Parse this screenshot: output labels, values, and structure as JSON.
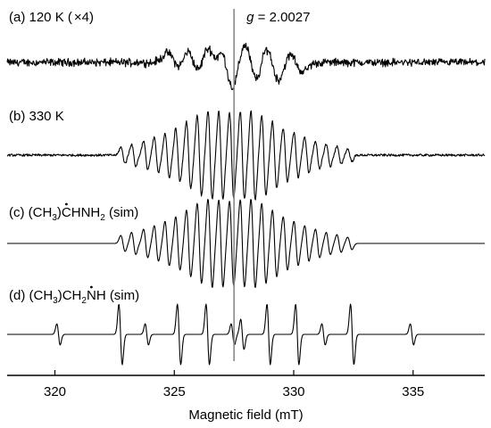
{
  "chart_data": {
    "type": "line",
    "xlabel": "Magnetic field (mT)",
    "xlim": [
      318.0,
      338.0
    ],
    "xticks": [
      320,
      325,
      330,
      335
    ],
    "grid": false,
    "reference_line": {
      "x": 327.5,
      "label_prefix": "g",
      "label_suffix": " = 2.0027"
    },
    "spectra": [
      {
        "id": "a",
        "label_parts": [
          "(a) 120 K (",
          "×",
          "4)"
        ],
        "kind": "broad-noisy",
        "range": [
          318.0,
          338.0
        ],
        "center": 327.5,
        "peaks": [
          {
            "x": 325.0,
            "amp": 0.35
          },
          {
            "x": 325.8,
            "amp": 0.55
          },
          {
            "x": 326.6,
            "amp": 0.7
          },
          {
            "x": 327.2,
            "amp": 1.0
          },
          {
            "x": 328.2,
            "amp": 0.8
          },
          {
            "x": 329.1,
            "amp": 0.7
          },
          {
            "x": 330.1,
            "amp": 0.35
          }
        ]
      },
      {
        "id": "b",
        "label_parts": [
          "(b) 330 K"
        ],
        "kind": "multiplet-noisy",
        "range": [
          318.0,
          338.0
        ],
        "center": 327.5,
        "lines": [
          {
            "x": 322.85,
            "amp": 0.18
          },
          {
            "x": 323.3,
            "amp": 0.25
          },
          {
            "x": 323.8,
            "amp": 0.32
          },
          {
            "x": 324.25,
            "amp": 0.4
          },
          {
            "x": 324.7,
            "amp": 0.5
          },
          {
            "x": 325.15,
            "amp": 0.6
          },
          {
            "x": 325.6,
            "amp": 0.75
          },
          {
            "x": 326.05,
            "amp": 0.9
          },
          {
            "x": 326.5,
            "amp": 1.0
          },
          {
            "x": 326.95,
            "amp": 0.98
          },
          {
            "x": 327.4,
            "amp": 0.95
          },
          {
            "x": 327.85,
            "amp": 0.98
          },
          {
            "x": 328.3,
            "amp": 1.0
          },
          {
            "x": 328.75,
            "amp": 0.9
          },
          {
            "x": 329.2,
            "amp": 0.75
          },
          {
            "x": 329.65,
            "amp": 0.6
          },
          {
            "x": 330.1,
            "amp": 0.5
          },
          {
            "x": 330.55,
            "amp": 0.4
          },
          {
            "x": 331.0,
            "amp": 0.32
          },
          {
            "x": 331.45,
            "amp": 0.25
          },
          {
            "x": 331.9,
            "amp": 0.2
          },
          {
            "x": 332.35,
            "amp": 0.14
          }
        ]
      },
      {
        "id": "c",
        "label_parts": [
          "(c) (CH",
          "3",
          ")",
          "C",
          "HNH",
          "2",
          " (sim)"
        ],
        "kind": "multiplet-sim",
        "range": [
          318.0,
          338.0
        ],
        "center": 327.5,
        "lines": [
          {
            "x": 322.85,
            "amp": 0.18
          },
          {
            "x": 323.3,
            "amp": 0.25
          },
          {
            "x": 323.8,
            "amp": 0.32
          },
          {
            "x": 324.25,
            "amp": 0.4
          },
          {
            "x": 324.7,
            "amp": 0.5
          },
          {
            "x": 325.15,
            "amp": 0.6
          },
          {
            "x": 325.6,
            "amp": 0.75
          },
          {
            "x": 326.05,
            "amp": 0.9
          },
          {
            "x": 326.5,
            "amp": 1.0
          },
          {
            "x": 326.95,
            "amp": 0.98
          },
          {
            "x": 327.4,
            "amp": 0.95
          },
          {
            "x": 327.85,
            "amp": 0.98
          },
          {
            "x": 328.3,
            "amp": 1.0
          },
          {
            "x": 328.75,
            "amp": 0.9
          },
          {
            "x": 329.2,
            "amp": 0.75
          },
          {
            "x": 329.65,
            "amp": 0.6
          },
          {
            "x": 330.1,
            "amp": 0.5
          },
          {
            "x": 330.55,
            "amp": 0.4
          },
          {
            "x": 331.0,
            "amp": 0.32
          },
          {
            "x": 331.45,
            "amp": 0.25
          },
          {
            "x": 331.9,
            "amp": 0.2
          },
          {
            "x": 332.35,
            "amp": 0.14
          }
        ]
      },
      {
        "id": "d",
        "label_parts": [
          "(d) (CH",
          "3",
          ")CH",
          "2",
          "N",
          "H (sim)"
        ],
        "kind": "lines-sim",
        "range": [
          318.0,
          338.0
        ],
        "center": 327.5,
        "lines": [
          {
            "x": 320.15,
            "amp": 0.35
          },
          {
            "x": 322.75,
            "amp": 1.0
          },
          {
            "x": 323.85,
            "amp": 0.35
          },
          {
            "x": 325.2,
            "amp": 1.0
          },
          {
            "x": 326.4,
            "amp": 1.0
          },
          {
            "x": 327.45,
            "amp": 0.35
          },
          {
            "x": 327.85,
            "amp": 0.5
          },
          {
            "x": 328.95,
            "amp": 1.0
          },
          {
            "x": 330.15,
            "amp": 1.0
          },
          {
            "x": 331.25,
            "amp": 0.35
          },
          {
            "x": 332.45,
            "amp": 1.0
          },
          {
            "x": 334.95,
            "amp": 0.35
          }
        ]
      }
    ]
  }
}
